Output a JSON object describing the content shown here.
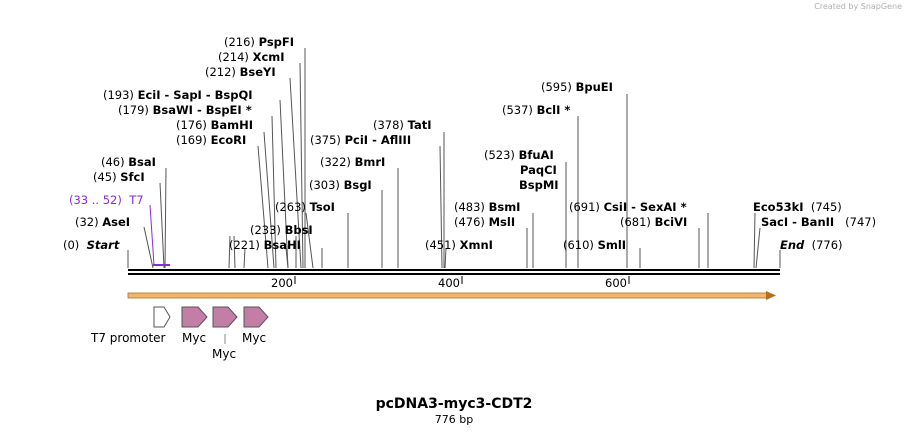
{
  "credit": "Created by SnapGene",
  "title": "pcDNA3-myc3-CDT2",
  "length": "776 bp",
  "ends": {
    "start_pos": "(0)",
    "start": "Start",
    "end": "End",
    "end_pos": "(776)"
  },
  "ticks": [
    "200",
    "400",
    "600"
  ],
  "sites": [
    {
      "pos": "(216)",
      "name": "PspFI"
    },
    {
      "pos": "(214)",
      "name": "XcmI"
    },
    {
      "pos": "(212)",
      "name": "BseYI"
    },
    {
      "pos": "(193)",
      "name": "EciI",
      "extra": " - SapI  - BspQI"
    },
    {
      "pos": "(179)",
      "name": "BsaWI",
      "extra": " - BspEI *"
    },
    {
      "pos": "(176)",
      "name": "BamHI"
    },
    {
      "pos": "(169)",
      "name": "EcoRI"
    },
    {
      "pos": "(46)",
      "name": "BsaI"
    },
    {
      "pos": "(45)",
      "name": "SfcI"
    },
    {
      "pos": "(32)",
      "name": "AseI"
    },
    {
      "pos": "(263)",
      "name": "TsoI"
    },
    {
      "pos": "(233)",
      "name": "BbsI"
    },
    {
      "pos": "(221)",
      "name": "BsaHI"
    },
    {
      "pos": "(375)",
      "name": "PciI",
      "extra": " - AflIII"
    },
    {
      "pos": "(378)",
      "name": "TatI"
    },
    {
      "pos": "(322)",
      "name": "BmrI"
    },
    {
      "pos": "(303)",
      "name": "BsgI"
    },
    {
      "pos": "(451)",
      "name": "XmnI"
    },
    {
      "pos": "(595)",
      "name": "BpuEI"
    },
    {
      "pos": "(537)",
      "name": "BclI *"
    },
    {
      "pos": "(523)",
      "name": "BfuAI"
    },
    {
      "pos": "",
      "name": "PaqCI"
    },
    {
      "pos": "",
      "name": "BspMI"
    },
    {
      "pos": "(483)",
      "name": "BsmI"
    },
    {
      "pos": "(476)",
      "name": "MslI"
    },
    {
      "pos": "(691)",
      "name": "CsiI",
      "extra": " - SexAI *"
    },
    {
      "pos": "(681)",
      "name": "BciVI"
    },
    {
      "pos": "(610)",
      "name": "SmlI"
    },
    {
      "pos": "",
      "name": "Eco53kI",
      "pos2": "(745)"
    },
    {
      "pos": "",
      "name": "SacI",
      "extra": " - BanII",
      "pos2": "(747)"
    }
  ],
  "primer": {
    "range": "(33 .. 52)",
    "name": "T7"
  },
  "features": [
    "T7 promoter",
    "Myc",
    "Myc",
    "Myc"
  ]
}
